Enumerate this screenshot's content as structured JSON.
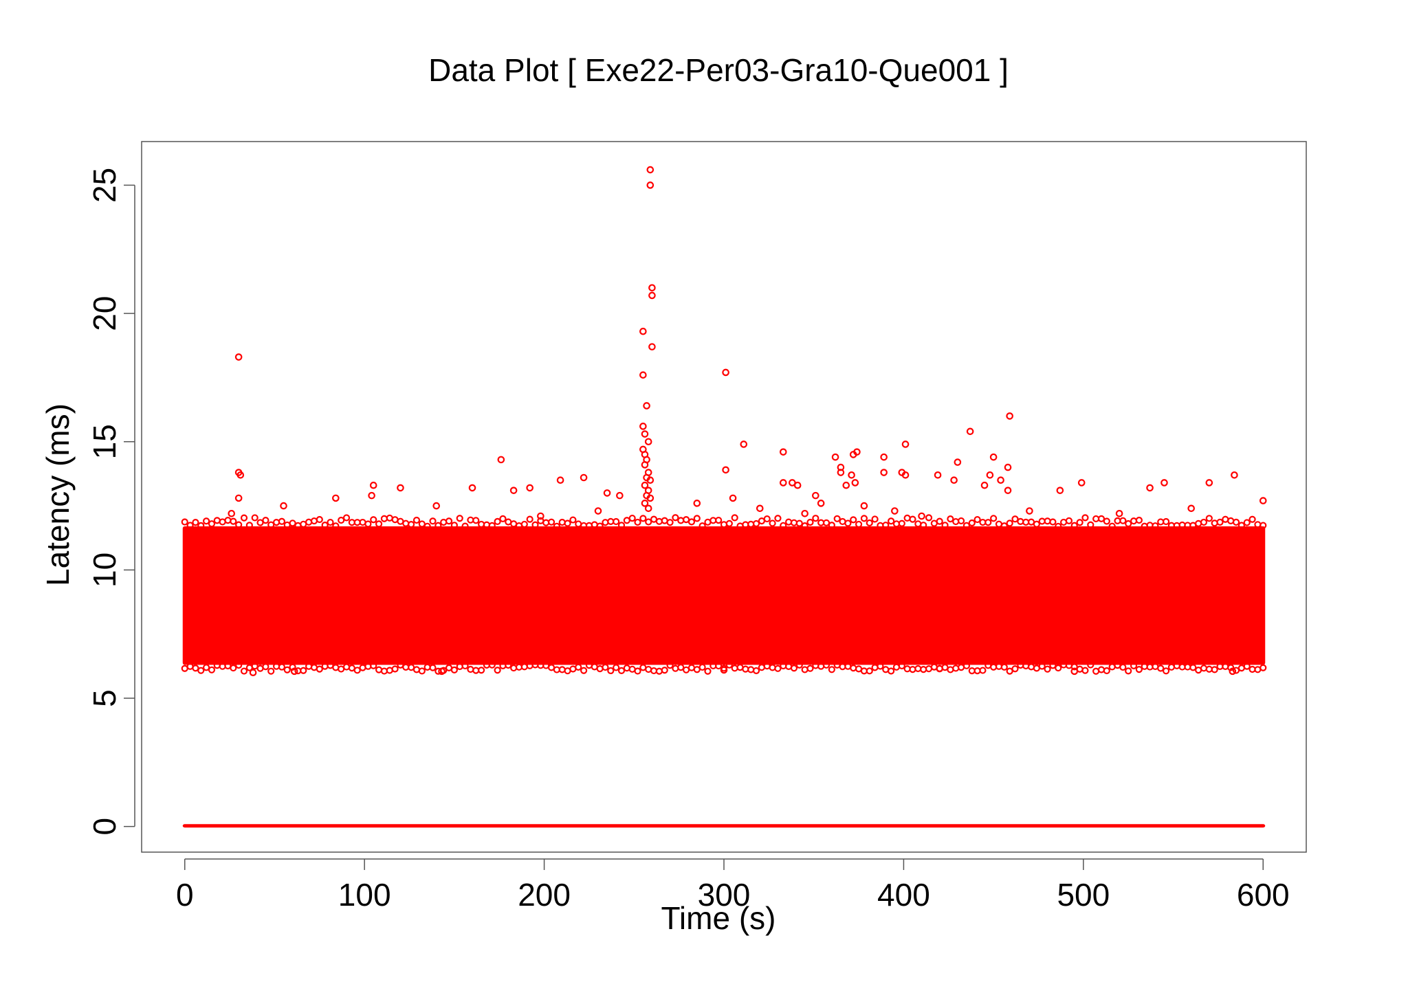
{
  "chart_data": {
    "type": "scatter",
    "title": "Data Plot [ Exe22-Per03-Gra10-Que001 ]",
    "xlabel": "Time (s)",
    "ylabel": "Latency (ms)",
    "xlim": [
      -24,
      624
    ],
    "ylim": [
      -1,
      26.7
    ],
    "x_ticks": [
      0,
      100,
      200,
      300,
      400,
      500,
      600
    ],
    "y_ticks": [
      0,
      5,
      10,
      15,
      20,
      25
    ],
    "x_tick_labels": [
      "0",
      "100",
      "200",
      "300",
      "400",
      "500",
      "600"
    ],
    "y_tick_labels": [
      "0",
      "5",
      "10",
      "15",
      "20",
      "25"
    ],
    "grid": false,
    "legend": "none",
    "marker": "open-circle",
    "series_color": "#ff0000",
    "dense_regions": [
      {
        "x_min": 0,
        "x_max": 600,
        "y_min": 6.3,
        "y_max": 11.7
      },
      {
        "x_min": 0,
        "x_max": 600,
        "y_min": 0.0,
        "y_max": 0.05
      }
    ],
    "points": [
      {
        "x": 30,
        "y": 18.3
      },
      {
        "x": 30,
        "y": 13.8
      },
      {
        "x": 31,
        "y": 13.7
      },
      {
        "x": 30,
        "y": 12.8
      },
      {
        "x": 105,
        "y": 13.3
      },
      {
        "x": 104,
        "y": 12.9
      },
      {
        "x": 120,
        "y": 13.2
      },
      {
        "x": 160,
        "y": 13.2
      },
      {
        "x": 176,
        "y": 14.3
      },
      {
        "x": 183,
        "y": 13.1
      },
      {
        "x": 192,
        "y": 13.2
      },
      {
        "x": 209,
        "y": 13.5
      },
      {
        "x": 222,
        "y": 13.6
      },
      {
        "x": 235,
        "y": 13.0
      },
      {
        "x": 242,
        "y": 12.9
      },
      {
        "x": 259,
        "y": 25.6
      },
      {
        "x": 259,
        "y": 25.0
      },
      {
        "x": 260,
        "y": 21.0
      },
      {
        "x": 260,
        "y": 20.7
      },
      {
        "x": 255,
        "y": 19.3
      },
      {
        "x": 260,
        "y": 18.7
      },
      {
        "x": 255,
        "y": 17.6
      },
      {
        "x": 257,
        "y": 16.4
      },
      {
        "x": 255,
        "y": 15.6
      },
      {
        "x": 256,
        "y": 15.3
      },
      {
        "x": 258,
        "y": 15.0
      },
      {
        "x": 255,
        "y": 14.7
      },
      {
        "x": 256,
        "y": 14.5
      },
      {
        "x": 257,
        "y": 14.3
      },
      {
        "x": 256,
        "y": 14.1
      },
      {
        "x": 258,
        "y": 13.8
      },
      {
        "x": 257,
        "y": 13.6
      },
      {
        "x": 259,
        "y": 13.5
      },
      {
        "x": 256,
        "y": 13.3
      },
      {
        "x": 258,
        "y": 13.1
      },
      {
        "x": 257,
        "y": 12.9
      },
      {
        "x": 259,
        "y": 12.8
      },
      {
        "x": 256,
        "y": 12.6
      },
      {
        "x": 258,
        "y": 12.4
      },
      {
        "x": 301,
        "y": 17.7
      },
      {
        "x": 301,
        "y": 13.9
      },
      {
        "x": 305,
        "y": 12.8
      },
      {
        "x": 311,
        "y": 14.9
      },
      {
        "x": 333,
        "y": 14.6
      },
      {
        "x": 333,
        "y": 13.4
      },
      {
        "x": 338,
        "y": 13.4
      },
      {
        "x": 341,
        "y": 13.3
      },
      {
        "x": 351,
        "y": 12.9
      },
      {
        "x": 354,
        "y": 12.6
      },
      {
        "x": 362,
        "y": 14.4
      },
      {
        "x": 365,
        "y": 14.0
      },
      {
        "x": 365,
        "y": 13.8
      },
      {
        "x": 368,
        "y": 13.3
      },
      {
        "x": 372,
        "y": 14.5
      },
      {
        "x": 374,
        "y": 14.6
      },
      {
        "x": 371,
        "y": 13.7
      },
      {
        "x": 373,
        "y": 13.4
      },
      {
        "x": 378,
        "y": 12.5
      },
      {
        "x": 389,
        "y": 14.4
      },
      {
        "x": 389,
        "y": 13.8
      },
      {
        "x": 399,
        "y": 13.8
      },
      {
        "x": 401,
        "y": 14.9
      },
      {
        "x": 401,
        "y": 13.7
      },
      {
        "x": 419,
        "y": 13.7
      },
      {
        "x": 428,
        "y": 13.5
      },
      {
        "x": 430,
        "y": 14.2
      },
      {
        "x": 437,
        "y": 15.4
      },
      {
        "x": 445,
        "y": 13.3
      },
      {
        "x": 448,
        "y": 13.7
      },
      {
        "x": 450,
        "y": 14.4
      },
      {
        "x": 454,
        "y": 13.5
      },
      {
        "x": 459,
        "y": 16.0
      },
      {
        "x": 458,
        "y": 14.0
      },
      {
        "x": 458,
        "y": 13.1
      },
      {
        "x": 487,
        "y": 13.1
      },
      {
        "x": 499,
        "y": 13.4
      },
      {
        "x": 537,
        "y": 13.2
      },
      {
        "x": 545,
        "y": 13.4
      },
      {
        "x": 570,
        "y": 13.4
      },
      {
        "x": 584,
        "y": 13.7
      },
      {
        "x": 600,
        "y": 12.7
      },
      {
        "x": 26,
        "y": 12.2
      },
      {
        "x": 55,
        "y": 12.5
      },
      {
        "x": 84,
        "y": 12.8
      },
      {
        "x": 140,
        "y": 12.5
      },
      {
        "x": 198,
        "y": 12.1
      },
      {
        "x": 230,
        "y": 12.3
      },
      {
        "x": 285,
        "y": 12.6
      },
      {
        "x": 320,
        "y": 12.4
      },
      {
        "x": 345,
        "y": 12.2
      },
      {
        "x": 395,
        "y": 12.3
      },
      {
        "x": 410,
        "y": 12.1
      },
      {
        "x": 470,
        "y": 12.3
      },
      {
        "x": 520,
        "y": 12.2
      },
      {
        "x": 560,
        "y": 12.4
      },
      {
        "x": 38,
        "y": 6.0
      },
      {
        "x": 61,
        "y": 6.05
      },
      {
        "x": 143,
        "y": 6.05
      },
      {
        "x": 495,
        "y": 6.05
      },
      {
        "x": 583,
        "y": 6.05
      },
      {
        "x": 300,
        "y": 6.1
      },
      {
        "x": 420,
        "y": 6.15
      }
    ]
  }
}
